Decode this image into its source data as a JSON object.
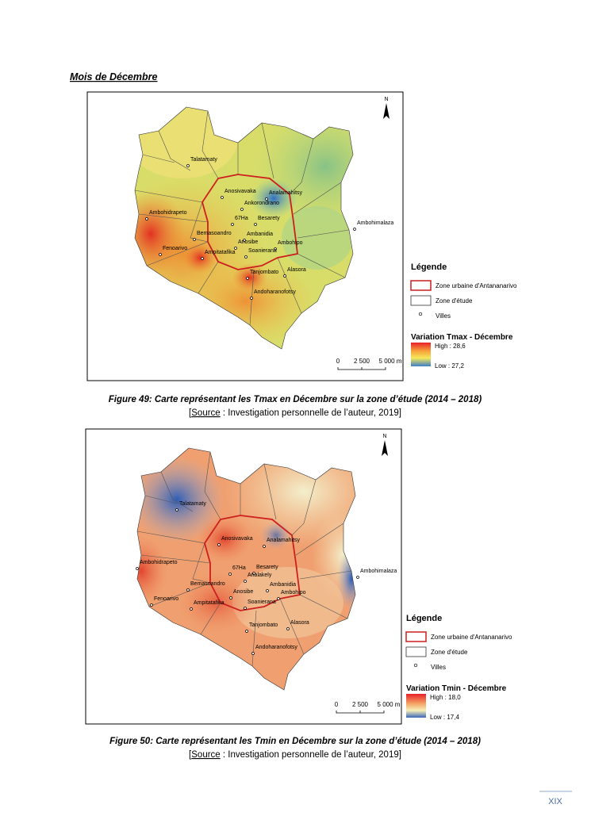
{
  "heading": "Mois de Décembre",
  "figures": [
    {
      "map": {
        "north": "N",
        "places": [
          "Talatamaty",
          "Anosivavaka",
          "Analamahitsy",
          "Ankorondrano",
          "Ambohidrapeto",
          "67Ha",
          "Besarety",
          "Ambanidia",
          "Ambohimalaza",
          "Bemasoandro",
          "Anosibe",
          "Ambohipo",
          "Soanierana",
          "Fenoarivo",
          "Ampitatafika",
          "Tanjombato",
          "Alasora",
          "Andoharanofotsy"
        ],
        "legend": {
          "title": "Légende",
          "items": [
            "Zone urbaine d'Antananarivo",
            "Zone d'étude",
            "Villes"
          ],
          "variable_title": "Variation Tmax - Décembre",
          "high": "High : 28,6",
          "low": "Low : 27,2"
        },
        "scale": [
          "0",
          "2 500",
          "5 000 m"
        ]
      },
      "caption": "Figure 49: Carte représentant les Tmax en Décembre sur la zone d’étude (2014 – 2018)",
      "source": {
        "open": "[",
        "label": "Source",
        "text": " : Investigation personnelle de l’auteur, 2019]"
      }
    },
    {
      "map": {
        "north": "N",
        "places": [
          "Talatamaty",
          "Anosivavaka",
          "Analamahitsy",
          "Ambohidrapeto",
          "67Ha",
          "Besarety",
          "Analakely",
          "Ambanidia",
          "Ambohimalaza",
          "Bemasoandro",
          "Fenoarivo",
          "Anosibe",
          "Ambohipo",
          "Ampitatafika",
          "Soanierana",
          "Tanjombato",
          "Alasora",
          "Andoharanofotsy"
        ],
        "legend": {
          "title": "Légende",
          "items": [
            "Zone urbaine d'Antananarivo",
            "Zone d'étude",
            "Villes"
          ],
          "variable_title": "Variation Tmin - Décembre",
          "high": "High : 18,0",
          "low": "Low : 17,4"
        },
        "scale": [
          "0",
          "2 500",
          "5 000 m"
        ]
      },
      "caption": "Figure 50: Carte représentant les Tmin en Décembre sur la zone d’étude (2014 – 2018)",
      "source": {
        "open": "[",
        "label": "Source",
        "text": " : Investigation personnelle de l’auteur, 2019]"
      }
    }
  ],
  "page_number": "XIX"
}
